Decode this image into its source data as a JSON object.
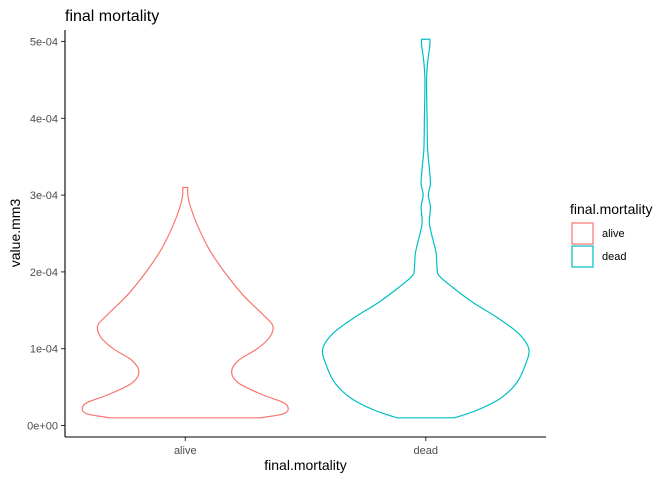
{
  "chart_data": {
    "type": "violin",
    "title": "final mortality",
    "xlabel": "final.mortality",
    "ylabel": "value.mm3",
    "categories": [
      "alive",
      "dead"
    ],
    "ylim": [
      -1.5e-05,
      0.000515
    ],
    "yticks": [
      {
        "value": 0,
        "label": "0e+00"
      },
      {
        "value": 0.0001,
        "label": "1e-04"
      },
      {
        "value": 0.0002,
        "label": "2e-04"
      },
      {
        "value": 0.0003,
        "label": "3e-04"
      },
      {
        "value": 0.0004,
        "label": "4e-04"
      },
      {
        "value": 0.0005,
        "label": "5e-04"
      }
    ],
    "grid": false,
    "legend": {
      "title": "final.mortality",
      "placement": "right",
      "entries": [
        {
          "label": "alive",
          "color": "#F8766D"
        },
        {
          "label": "dead",
          "color": "#00BFC4"
        }
      ]
    },
    "series": [
      {
        "category": "alive",
        "color": "#F8766D",
        "min": 1e-05,
        "max": 0.00031,
        "profile": [
          [
            1e-05,
            0.73
          ],
          [
            1.5e-05,
            0.95
          ],
          [
            2.2e-05,
            1.0
          ],
          [
            3e-05,
            0.95
          ],
          [
            4e-05,
            0.75
          ],
          [
            5.5e-05,
            0.52
          ],
          [
            7e-05,
            0.45
          ],
          [
            8.5e-05,
            0.52
          ],
          [
            0.0001,
            0.7
          ],
          [
            0.000115,
            0.82
          ],
          [
            0.00013,
            0.85
          ],
          [
            0.000145,
            0.75
          ],
          [
            0.00017,
            0.56
          ],
          [
            0.0002,
            0.38
          ],
          [
            0.00023,
            0.23
          ],
          [
            0.00026,
            0.12
          ],
          [
            0.000285,
            0.05
          ],
          [
            0.0003,
            0.025
          ],
          [
            0.00031,
            0.025
          ]
        ]
      },
      {
        "category": "dead",
        "color": "#00BFC4",
        "min": 1e-05,
        "max": 0.000503,
        "profile": [
          [
            1e-05,
            0.28
          ],
          [
            2e-05,
            0.5
          ],
          [
            3.5e-05,
            0.72
          ],
          [
            5.5e-05,
            0.88
          ],
          [
            8e-05,
            0.97
          ],
          [
            0.0001,
            1.0
          ],
          [
            0.00012,
            0.9
          ],
          [
            0.00014,
            0.7
          ],
          [
            0.00016,
            0.46
          ],
          [
            0.00018,
            0.26
          ],
          [
            0.000195,
            0.13
          ],
          [
            0.000205,
            0.11
          ],
          [
            0.000225,
            0.1
          ],
          [
            0.00025,
            0.055
          ],
          [
            0.000265,
            0.035
          ],
          [
            0.000285,
            0.045
          ],
          [
            0.0003,
            0.025
          ],
          [
            0.000315,
            0.045
          ],
          [
            0.000335,
            0.035
          ],
          [
            0.00036,
            0.018
          ],
          [
            0.0004,
            0.013
          ],
          [
            0.00045,
            0.008
          ],
          [
            0.000475,
            0.02
          ],
          [
            0.000495,
            0.04
          ],
          [
            0.000503,
            0.04
          ]
        ]
      }
    ]
  }
}
